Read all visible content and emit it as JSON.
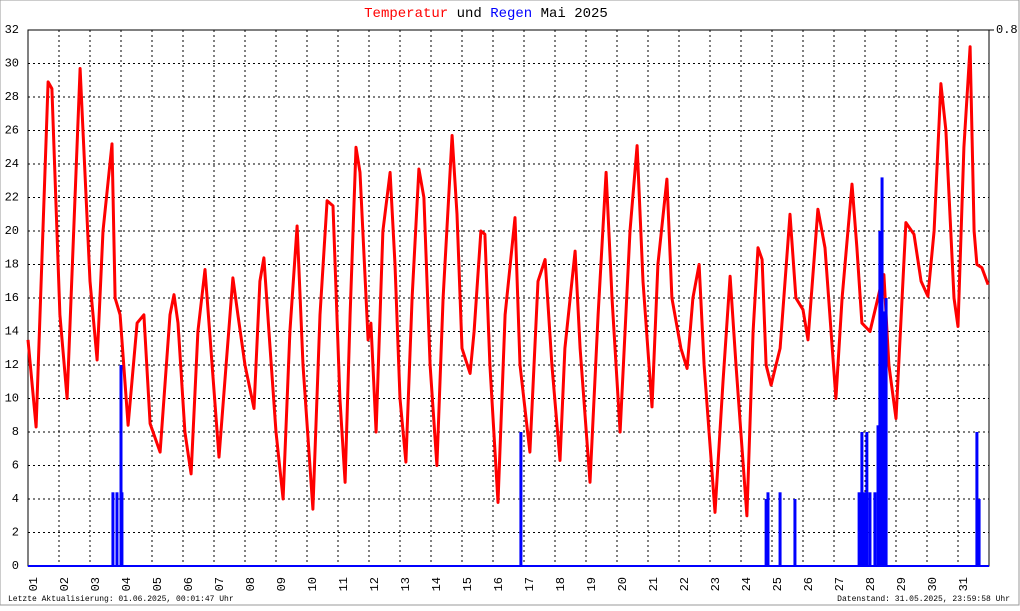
{
  "chart_data": {
    "type": "line",
    "title": "Mai 2025",
    "title_connector": "und",
    "footer_left": "Letzte Aktualisierung: 01.06.2025, 00:01:47 Uhr",
    "footer_right": "Datenstand: 31.05.2025, 23:59:58 Uhr",
    "xlim": [
      1,
      32
    ],
    "xticks": [
      {
        "value": 1,
        "label": "01"
      },
      {
        "value": 2,
        "label": "02"
      },
      {
        "value": 3,
        "label": "03"
      },
      {
        "value": 4,
        "label": "04"
      },
      {
        "value": 5,
        "label": "05"
      },
      {
        "value": 6,
        "label": "06"
      },
      {
        "value": 7,
        "label": "07"
      },
      {
        "value": 8,
        "label": "08"
      },
      {
        "value": 9,
        "label": "09"
      },
      10,
      11,
      12,
      13,
      14,
      15,
      16,
      17,
      18,
      19,
      20,
      21,
      22,
      23,
      24,
      25,
      26,
      27,
      28,
      29,
      30,
      31
    ],
    "ylim": [
      0,
      32
    ],
    "yticks": [
      0,
      2,
      4,
      6,
      8,
      10,
      12,
      14,
      16,
      18,
      20,
      22,
      24,
      26,
      28,
      30,
      32
    ],
    "y2lim": [
      0,
      0.8
    ],
    "y2ticks": [
      0.8
    ],
    "grid": true,
    "series": [
      {
        "name": "Temperatur",
        "color": "#ff0000",
        "x": [
          1,
          1.26,
          1.65,
          1.77,
          2.03,
          2.26,
          2.68,
          3.0,
          3.23,
          3.42,
          3.71,
          3.81,
          3.97,
          4.23,
          4.52,
          4.74,
          4.94,
          5.26,
          5.58,
          5.71,
          5.84,
          6.06,
          6.26,
          6.48,
          6.71,
          6.94,
          7.16,
          7.39,
          7.61,
          7.77,
          8.0,
          8.29,
          8.48,
          8.61,
          8.81,
          9.0,
          9.23,
          9.45,
          9.68,
          9.87,
          10.19,
          10.42,
          10.65,
          10.84,
          11.06,
          11.23,
          11.39,
          11.58,
          11.71,
          11.97,
          12.06,
          12.23,
          12.45,
          12.68,
          12.84,
          13.0,
          13.19,
          13.39,
          13.61,
          13.77,
          13.97,
          14.19,
          14.39,
          14.68,
          14.84,
          15.0,
          15.26,
          15.39,
          15.61,
          15.74,
          15.9,
          16.16,
          16.39,
          16.71,
          16.87,
          17.19,
          17.45,
          17.68,
          17.9,
          18.16,
          18.32,
          18.65,
          18.81,
          19.13,
          19.39,
          19.65,
          19.84,
          20.1,
          20.42,
          20.65,
          20.84,
          21.13,
          21.32,
          21.61,
          21.77,
          22.06,
          22.26,
          22.45,
          22.65,
          22.81,
          23.16,
          23.42,
          23.65,
          23.84,
          24.19,
          24.39,
          24.55,
          24.68,
          24.81,
          24.97,
          25.26,
          25.58,
          25.77,
          26.0,
          26.16,
          26.48,
          26.71,
          27.06,
          27.26,
          27.58,
          27.74,
          27.9,
          28.16,
          28.48,
          28.61,
          28.71,
          28.77,
          29.0,
          29.32,
          29.58,
          29.81,
          30.03,
          30.23,
          30.45,
          30.61,
          30.87,
          31.0,
          31.19,
          31.39,
          31.52,
          31.61,
          31.77,
          31.97
        ],
        "values": [
          13.5,
          8.3,
          28.9,
          28.5,
          15,
          10,
          29.7,
          17,
          12.3,
          20,
          25.2,
          16,
          15,
          8.4,
          14.5,
          15,
          8.5,
          6.8,
          15,
          16.2,
          14.5,
          8,
          5.5,
          14,
          17.7,
          12,
          6.5,
          12,
          17.2,
          15,
          12,
          9.4,
          17,
          18.4,
          13,
          8,
          4,
          14,
          20.3,
          12,
          3.4,
          15,
          21.8,
          21.5,
          10,
          5,
          15,
          25,
          23.5,
          13.5,
          14.5,
          8,
          20,
          23.5,
          18,
          10,
          6.2,
          16,
          23.7,
          22,
          12,
          6,
          16,
          25.7,
          21,
          13,
          11.5,
          14,
          20,
          19.8,
          12,
          3.8,
          15,
          20.8,
          12,
          6.8,
          17,
          18.3,
          12,
          6.3,
          13,
          18.8,
          13,
          5,
          15,
          23.5,
          16,
          8,
          20,
          25.1,
          17,
          9.5,
          18,
          23.1,
          16,
          13,
          11.8,
          16,
          18,
          12,
          3.2,
          11,
          17.3,
          12,
          3,
          14,
          19,
          18.3,
          12,
          10.8,
          13,
          21,
          16,
          15.3,
          13.5,
          21.3,
          19,
          10,
          16,
          22.8,
          19,
          14.5,
          14,
          16.5,
          17.4,
          14,
          12,
          8.8,
          20.5,
          19.8,
          17,
          16.1,
          20,
          28.8,
          26,
          16,
          14.3,
          25,
          31,
          20,
          18,
          17.8,
          16.8
        ]
      },
      {
        "name": "Regen",
        "color": "#0000ff",
        "type": "bar",
        "axis": "y2",
        "x": [
          3.74,
          3.87,
          4.0,
          4.03,
          16.9,
          24.81,
          24.87,
          25.26,
          25.74,
          27.81,
          27.9,
          27.97,
          28.06,
          28.16,
          28.32,
          28.42,
          28.48,
          28.55,
          28.61,
          28.68,
          31.61,
          31.68
        ],
        "values": [
          0.11,
          0.11,
          0.3,
          0.11,
          0.2,
          0.1,
          0.11,
          0.11,
          0.1,
          0.11,
          0.2,
          0.11,
          0.2,
          0.11,
          0.11,
          0.21,
          0.5,
          0.58,
          0.38,
          0.4,
          0.2,
          0.1
        ]
      }
    ]
  }
}
